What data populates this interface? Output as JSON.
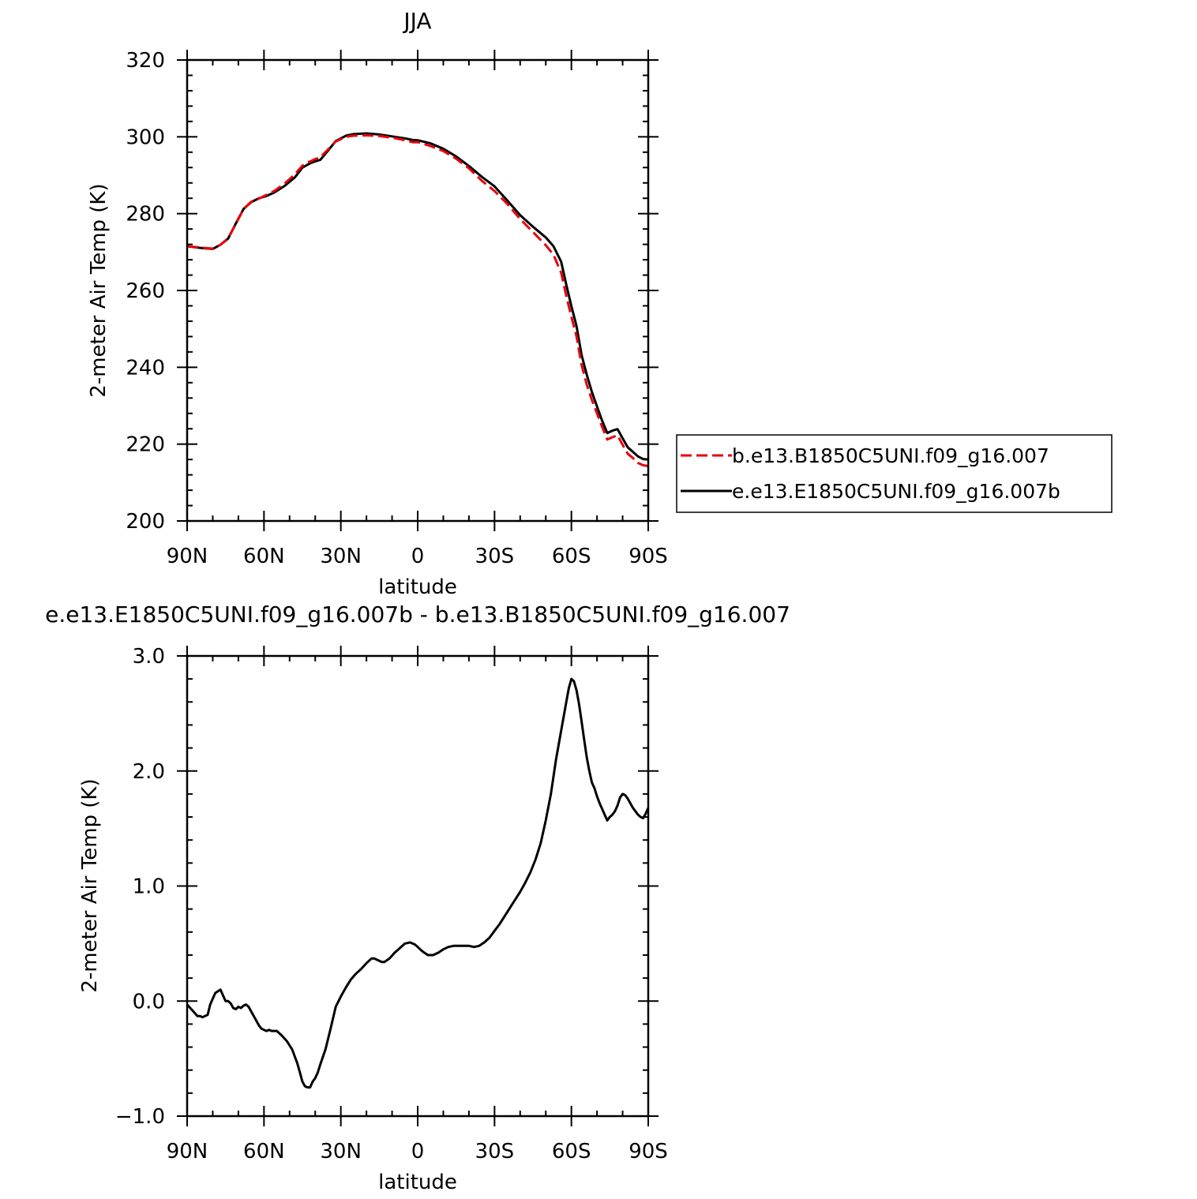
{
  "chart_data": [
    {
      "type": "line",
      "title": "JJA",
      "xlabel": "latitude",
      "ylabel": "2-meter Air Temp (K)",
      "xlim": [
        90,
        -90
      ],
      "ylim": [
        200,
        320
      ],
      "x_ticks": [
        {
          "value": 90,
          "label": "90N"
        },
        {
          "value": 60,
          "label": "60N"
        },
        {
          "value": 30,
          "label": "30N"
        },
        {
          "value": 0,
          "label": "0"
        },
        {
          "value": -30,
          "label": "30S"
        },
        {
          "value": -60,
          "label": "60S"
        },
        {
          "value": -90,
          "label": "90S"
        }
      ],
      "y_ticks": [
        {
          "value": 200,
          "label": "200"
        },
        {
          "value": 220,
          "label": "220"
        },
        {
          "value": 240,
          "label": "240"
        },
        {
          "value": 260,
          "label": "260"
        },
        {
          "value": 280,
          "label": "280"
        },
        {
          "value": 300,
          "label": "300"
        },
        {
          "value": 320,
          "label": "320"
        }
      ],
      "grid": false,
      "legend": "right",
      "series": [
        {
          "name": "b.e13.B1850C5UNI.f09_g16.007",
          "color": "#e8000b",
          "dash": "dashed",
          "x": [
            90,
            85,
            80,
            77,
            74,
            71,
            68,
            65,
            62,
            59,
            56,
            52,
            48,
            45,
            42,
            40,
            38,
            35,
            32,
            28,
            25,
            20,
            15,
            10,
            5,
            2,
            0,
            -5,
            -10,
            -15,
            -20,
            -25,
            -30,
            -35,
            -40,
            -45,
            -50,
            -53,
            -56,
            -58,
            -60,
            -62,
            -64,
            -66,
            -68,
            -70,
            -72,
            -74,
            -76,
            -78,
            -80,
            -82,
            -84,
            -86,
            -88,
            -90
          ],
          "values": [
            271.5,
            271.2,
            270.9,
            271.9,
            273.6,
            277.3,
            281.2,
            283.1,
            283.9,
            284.9,
            285.9,
            287.8,
            290.2,
            292.5,
            293.6,
            294.2,
            294.7,
            296.7,
            298.8,
            300.0,
            300.3,
            300.4,
            300.2,
            299.8,
            299.1,
            298.6,
            298.6,
            297.6,
            296.3,
            294.3,
            291.8,
            288.6,
            285.9,
            282.5,
            278.6,
            275.2,
            271.8,
            269.3,
            264.6,
            258.6,
            253.1,
            248.0,
            240.6,
            235.5,
            231.5,
            228.0,
            224.5,
            221.2,
            221.8,
            222.3,
            219.8,
            217.5,
            216.4,
            215.1,
            214.5,
            214.3
          ]
        },
        {
          "name": "e.e13.E1850C5UNI.f09_g16.007b",
          "color": "#000000",
          "dash": "solid",
          "x": [
            90,
            85,
            80,
            77,
            74,
            71,
            68,
            65,
            62,
            59,
            56,
            52,
            48,
            45,
            42,
            40,
            38,
            35,
            32,
            28,
            25,
            20,
            15,
            10,
            5,
            2,
            0,
            -5,
            -10,
            -15,
            -20,
            -25,
            -30,
            -35,
            -40,
            -45,
            -50,
            -53,
            -56,
            -58,
            -60,
            -62,
            -64,
            -66,
            -68,
            -70,
            -72,
            -74,
            -76,
            -78,
            -80,
            -82,
            -84,
            -86,
            -88,
            -90
          ],
          "values": [
            271.5,
            271.1,
            270.8,
            271.9,
            273.5,
            277.4,
            281.2,
            283.0,
            284.0,
            284.6,
            285.5,
            287.2,
            289.4,
            292.0,
            293.1,
            293.6,
            294.0,
            296.4,
            298.9,
            300.3,
            300.7,
            300.9,
            300.6,
            300.1,
            299.6,
            299.2,
            299.1,
            298.3,
            296.9,
            294.9,
            292.4,
            289.6,
            287.1,
            283.4,
            279.6,
            276.6,
            273.8,
            271.5,
            267.5,
            261.5,
            255.9,
            250.7,
            243.2,
            238.1,
            233.6,
            229.8,
            226.1,
            222.9,
            223.5,
            223.9,
            221.5,
            219.2,
            218.0,
            216.8,
            216.1,
            216.0
          ]
        }
      ]
    },
    {
      "type": "line",
      "title": "e.e13.E1850C5UNI.f09_g16.007b - b.e13.B1850C5UNI.f09_g16.007",
      "xlabel": "latitude",
      "ylabel": "2-meter Air Temp (K)",
      "xlim": [
        90,
        -90
      ],
      "ylim": [
        -1.0,
        3.0
      ],
      "x_ticks": [
        {
          "value": 90,
          "label": "90N"
        },
        {
          "value": 60,
          "label": "60N"
        },
        {
          "value": 30,
          "label": "30N"
        },
        {
          "value": 0,
          "label": "0"
        },
        {
          "value": -30,
          "label": "30S"
        },
        {
          "value": -60,
          "label": "60S"
        },
        {
          "value": -90,
          "label": "90S"
        }
      ],
      "y_ticks": [
        {
          "value": -1.0,
          "label": "−1.0"
        },
        {
          "value": 0.0,
          "label": "0.0"
        },
        {
          "value": 1.0,
          "label": "1.0"
        },
        {
          "value": 2.0,
          "label": "2.0"
        },
        {
          "value": 3.0,
          "label": "3.0"
        }
      ],
      "grid": false,
      "series": [
        {
          "color": "#000000",
          "dash": "solid",
          "x": [
            90,
            88,
            86,
            85,
            84,
            82,
            81,
            80,
            79,
            77,
            76,
            75,
            74,
            73,
            72,
            71,
            70,
            69,
            68,
            67,
            66,
            65,
            64,
            62,
            61,
            60,
            59,
            58,
            57,
            55,
            53,
            51,
            49,
            47,
            46,
            45,
            44,
            43,
            42,
            41,
            40,
            39,
            38,
            36,
            34,
            32,
            30,
            28,
            26,
            24,
            22,
            20,
            18,
            17,
            16,
            15,
            14,
            13,
            11,
            9,
            7,
            5,
            3,
            1,
            0,
            -1,
            -2,
            -4,
            -6,
            -8,
            -10,
            -12,
            -14,
            -16,
            -18,
            -20,
            -22,
            -24,
            -26,
            -28,
            -30,
            -32,
            -34,
            -36,
            -38,
            -40,
            -42,
            -44,
            -46,
            -48,
            -50,
            -52,
            -54,
            -56,
            -58,
            -59,
            -60,
            -61,
            -62,
            -63,
            -64,
            -65,
            -66,
            -67,
            -68,
            -69,
            -70,
            -71,
            -72,
            -73,
            -74,
            -75,
            -76,
            -77,
            -78,
            -79,
            -80,
            -81,
            -82,
            -83,
            -84,
            -85,
            -86,
            -87,
            -88,
            -89,
            -90
          ],
          "values": [
            -0.03,
            -0.08,
            -0.13,
            -0.13,
            -0.14,
            -0.12,
            -0.03,
            0.02,
            0.07,
            0.1,
            0.05,
            0.0,
            0.0,
            -0.02,
            -0.06,
            -0.07,
            -0.05,
            -0.06,
            -0.04,
            -0.03,
            -0.05,
            -0.09,
            -0.13,
            -0.21,
            -0.24,
            -0.25,
            -0.26,
            -0.25,
            -0.26,
            -0.26,
            -0.3,
            -0.35,
            -0.42,
            -0.54,
            -0.62,
            -0.7,
            -0.74,
            -0.75,
            -0.75,
            -0.7,
            -0.67,
            -0.62,
            -0.55,
            -0.42,
            -0.24,
            -0.05,
            0.04,
            0.12,
            0.19,
            0.24,
            0.28,
            0.33,
            0.37,
            0.37,
            0.36,
            0.35,
            0.34,
            0.34,
            0.37,
            0.42,
            0.46,
            0.5,
            0.51,
            0.49,
            0.47,
            0.45,
            0.43,
            0.4,
            0.4,
            0.42,
            0.45,
            0.47,
            0.48,
            0.48,
            0.48,
            0.48,
            0.47,
            0.48,
            0.51,
            0.55,
            0.61,
            0.67,
            0.74,
            0.81,
            0.88,
            0.95,
            1.03,
            1.12,
            1.23,
            1.37,
            1.57,
            1.8,
            2.1,
            2.35,
            2.6,
            2.72,
            2.8,
            2.78,
            2.7,
            2.58,
            2.43,
            2.27,
            2.12,
            2.0,
            1.9,
            1.85,
            1.78,
            1.72,
            1.67,
            1.62,
            1.57,
            1.6,
            1.62,
            1.65,
            1.7,
            1.77,
            1.8,
            1.79,
            1.76,
            1.72,
            1.68,
            1.65,
            1.62,
            1.6,
            1.59,
            1.63,
            1.68
          ]
        }
      ]
    }
  ]
}
